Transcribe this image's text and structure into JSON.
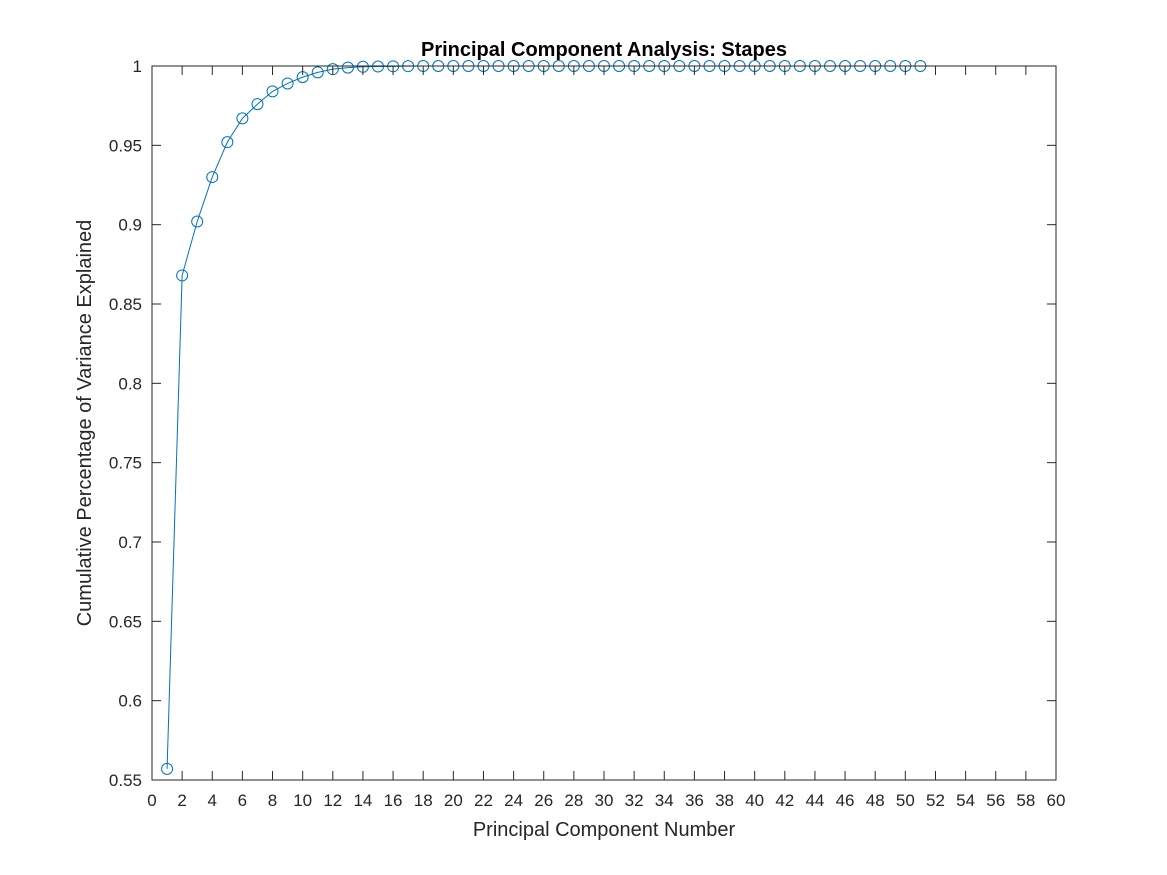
{
  "chart_data": {
    "type": "line",
    "title": "Principal Component Analysis: Stapes",
    "xlabel": "Principal Component Number",
    "ylabel": "Cumulative Percentage of Variance Explained",
    "xlim": [
      0,
      60
    ],
    "ylim": [
      0.55,
      1
    ],
    "xticks": [
      0,
      2,
      4,
      6,
      8,
      10,
      12,
      14,
      16,
      18,
      20,
      22,
      24,
      26,
      28,
      30,
      32,
      34,
      36,
      38,
      40,
      42,
      44,
      46,
      48,
      50,
      52,
      54,
      56,
      58,
      60
    ],
    "yticks": [
      0.55,
      0.6,
      0.65,
      0.7,
      0.75,
      0.8,
      0.85,
      0.9,
      0.95,
      1
    ],
    "ytick_labels": [
      "0.55",
      "0.6",
      "0.65",
      "0.7",
      "0.75",
      "0.8",
      "0.85",
      "0.9",
      "0.95",
      "1"
    ],
    "grid": false,
    "marker": "circle",
    "series": [
      {
        "x": [
          1,
          2,
          3,
          4,
          5,
          6,
          7,
          8,
          9,
          10,
          11,
          12,
          13,
          14,
          15,
          16,
          17,
          18,
          19,
          20,
          21,
          22,
          23,
          24,
          25,
          26,
          27,
          28,
          29,
          30,
          31,
          32,
          33,
          34,
          35,
          36,
          37,
          38,
          39,
          40,
          41,
          42,
          43,
          44,
          45,
          46,
          47,
          48,
          49,
          50,
          51
        ],
        "values": [
          0.557,
          0.868,
          0.902,
          0.93,
          0.952,
          0.967,
          0.976,
          0.984,
          0.989,
          0.993,
          0.996,
          0.998,
          0.999,
          0.9995,
          0.9997,
          0.9998,
          0.9999,
          1,
          1,
          1,
          1,
          1,
          1,
          1,
          1,
          1,
          1,
          1,
          1,
          1,
          1,
          1,
          1,
          1,
          1,
          1,
          1,
          1,
          1,
          1,
          1,
          1,
          1,
          1,
          1,
          1,
          1,
          1,
          1,
          1,
          1
        ],
        "color": "#0072BD"
      }
    ]
  }
}
